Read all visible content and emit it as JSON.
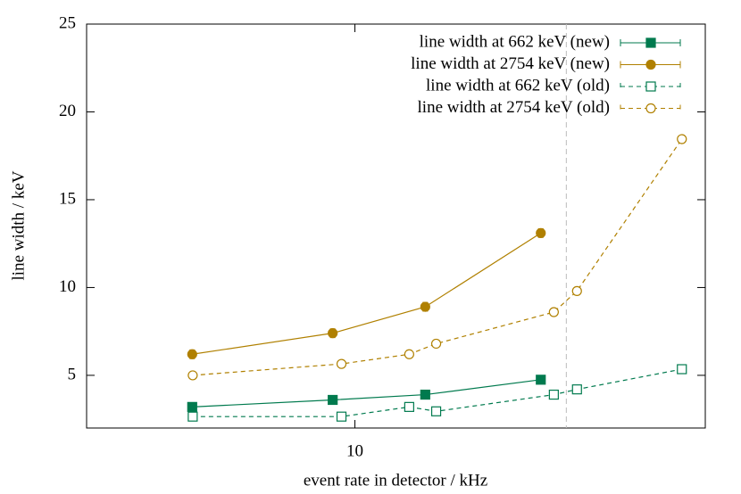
{
  "chart_data": {
    "type": "line",
    "y_label": "line width / keV",
    "x_label": "event rate in detector / kHz",
    "xscale": "log",
    "xlim": [
      3.9,
      34.2
    ],
    "xticks": [
      10
    ],
    "ylim": [
      2,
      25
    ],
    "yticks": [
      5,
      10,
      15,
      20,
      25
    ],
    "vline": 21,
    "series": [
      {
        "name": "line width at 662 keV (new)",
        "color": "#007a4e",
        "marker": "square",
        "filled": true,
        "dashed": false,
        "x": [
          5.65,
          9.25,
          12.8,
          19.2
        ],
        "values": [
          3.2,
          3.6,
          3.9,
          4.75
        ],
        "errors": [
          0.15,
          0.15,
          0.15,
          0.15
        ]
      },
      {
        "name": "line width at 2754 keV (new)",
        "color": "#b08000",
        "marker": "circle",
        "filled": true,
        "dashed": false,
        "x": [
          5.65,
          9.25,
          12.8,
          19.2
        ],
        "values": [
          6.2,
          7.4,
          8.9,
          13.1
        ],
        "errors": [
          0.25,
          0.25,
          0.25,
          0.25
        ]
      },
      {
        "name": "line width at 662 keV (old)",
        "color": "#007a4e",
        "marker": "square",
        "filled": false,
        "dashed": true,
        "x": [
          5.66,
          9.54,
          12.1,
          13.3,
          20.1,
          21.8,
          31.5
        ],
        "values": [
          2.65,
          2.65,
          3.2,
          2.95,
          3.9,
          4.2,
          5.35
        ],
        "errors": [
          0.15,
          0.15,
          0.15,
          0.15,
          0.15,
          0.15,
          0.15
        ]
      },
      {
        "name": "line width at 2754 keV (old)",
        "color": "#b08000",
        "marker": "circle",
        "filled": false,
        "dashed": true,
        "x": [
          5.66,
          9.54,
          12.1,
          13.3,
          20.1,
          21.8,
          31.5
        ],
        "values": [
          5.0,
          5.65,
          6.2,
          6.8,
          8.6,
          9.8,
          18.45
        ],
        "errors": [
          0.2,
          0.2,
          0.2,
          0.2,
          0.2,
          0.2,
          0.2
        ]
      }
    ]
  }
}
